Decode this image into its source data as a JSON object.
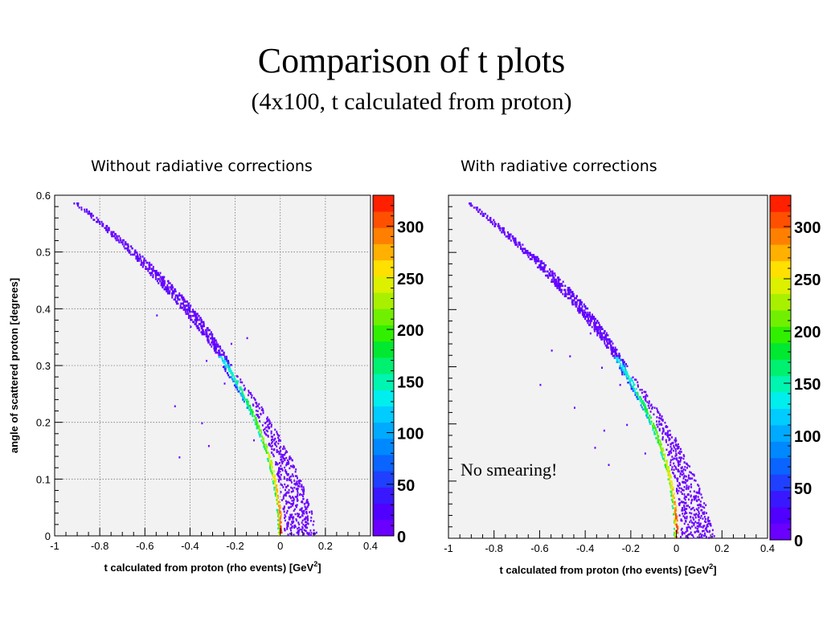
{
  "slide": {
    "title": "Comparison of t plots",
    "subtitle": "(4x100, t calculated from proton)"
  },
  "panels": [
    {
      "caption": "Without radiative corrections",
      "ylabel": "angle of scattered proton [degrees]",
      "annotation": ""
    },
    {
      "caption": "With radiative corrections",
      "ylabel": "",
      "annotation": "No smearing!"
    }
  ],
  "chart_data": [
    {
      "type": "heatmap",
      "title": "Without radiative corrections",
      "xlabel": "t calculated from proton (rho events) [GeV",
      "xlabel_sup": "2",
      "xlabel_end": "]",
      "ylabel": "angle of scattered proton [degrees]",
      "xlim": [
        -1,
        0.4
      ],
      "ylim": [
        0,
        0.6
      ],
      "x_ticks": [
        "-1",
        "-0.8",
        "-0.6",
        "-0.4",
        "-0.2",
        "0",
        "0.2",
        "0.4"
      ],
      "y_ticks": [
        "0",
        "0.1",
        "0.2",
        "0.3",
        "0.4",
        "0.5",
        "0.6"
      ],
      "grid": true,
      "colorbar": {
        "ticks": [
          "0",
          "50",
          "100",
          "150",
          "200",
          "250",
          "300"
        ],
        "max": 330
      },
      "band": {
        "x_at_zero_angle": 0,
        "x_at_top": -0.92,
        "angle_top": 0.59
      },
      "scattered_points": [
        [
          -0.4,
          0.37
        ],
        [
          -0.33,
          0.31
        ],
        [
          -0.22,
          0.34
        ],
        [
          -0.15,
          0.35
        ],
        [
          -0.25,
          0.27
        ],
        [
          -0.35,
          0.2
        ],
        [
          -0.47,
          0.23
        ],
        [
          -0.55,
          0.39
        ],
        [
          -0.45,
          0.14
        ],
        [
          -0.32,
          0.16
        ],
        [
          -0.12,
          0.17
        ]
      ]
    },
    {
      "type": "heatmap",
      "title": "With radiative corrections",
      "xlabel": "t calculated from proton (rho events) [GeV",
      "xlabel_sup": "2",
      "xlabel_end": "]",
      "ylabel": "",
      "xlim": [
        -1,
        0.4
      ],
      "ylim": [
        0,
        0.6
      ],
      "x_ticks": [
        "-1",
        "-0.8",
        "-0.6",
        "-0.4",
        "-0.2",
        "0",
        "0.2",
        "0.4"
      ],
      "y_ticks": [],
      "grid": false,
      "colorbar": {
        "ticks": [
          "0",
          "50",
          "100",
          "150",
          "200",
          "250",
          "300"
        ],
        "max": 330
      },
      "band": {
        "x_at_zero_angle": 0,
        "x_at_top": -0.92,
        "angle_top": 0.59
      },
      "scattered_points": [
        [
          -0.55,
          0.33
        ],
        [
          -0.47,
          0.32
        ],
        [
          -0.38,
          0.36
        ],
        [
          -0.33,
          0.3
        ],
        [
          -0.25,
          0.27
        ],
        [
          -0.45,
          0.23
        ],
        [
          -0.6,
          0.27
        ],
        [
          -0.36,
          0.16
        ],
        [
          -0.32,
          0.19
        ],
        [
          -0.14,
          0.15
        ],
        [
          -0.3,
          0.13
        ],
        [
          -0.22,
          0.2
        ]
      ]
    }
  ]
}
